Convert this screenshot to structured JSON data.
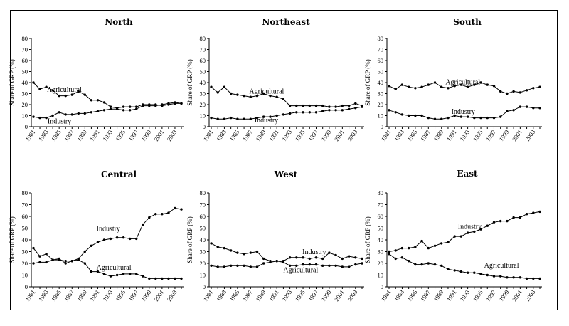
{
  "chart_data": [
    {
      "type": "line",
      "title": "North",
      "ylabel": "Share of GRP (%)",
      "xlabel": "",
      "ylim": [
        0,
        80
      ],
      "yticks": [
        0,
        10,
        20,
        30,
        40,
        50,
        60,
        70,
        80
      ],
      "x": [
        1981,
        1982,
        1983,
        1984,
        1985,
        1986,
        1987,
        1988,
        1989,
        1990,
        1991,
        1992,
        1993,
        1994,
        1995,
        1996,
        1997,
        1998,
        1999,
        2000,
        2001,
        2002,
        2003,
        2004
      ],
      "xtick_labels": [
        "1981",
        "1983",
        "1985",
        "1987",
        "1989",
        "1991",
        "1993",
        "1995",
        "1997",
        "1999",
        "2001",
        "2003"
      ],
      "series": [
        {
          "name": "Agricultural",
          "label": "Agricultural",
          "values": [
            40,
            34,
            36,
            33,
            28,
            28,
            29,
            32,
            29,
            24,
            24,
            22,
            18,
            17,
            18,
            18,
            18,
            20,
            20,
            20,
            19,
            20,
            21,
            21
          ]
        },
        {
          "name": "Industry",
          "label": "Industry",
          "values": [
            9,
            8,
            8,
            10,
            13,
            11,
            11,
            12,
            12,
            13,
            14,
            15,
            16,
            16,
            15,
            15,
            16,
            19,
            19,
            19,
            20,
            21,
            22,
            21
          ]
        }
      ]
    },
    {
      "type": "line",
      "title": "Northeast",
      "ylabel": "Share of GRP (%)",
      "xlabel": "",
      "ylim": [
        0,
        80
      ],
      "yticks": [
        0,
        10,
        20,
        30,
        40,
        50,
        60,
        70,
        80
      ],
      "x": [
        1981,
        1982,
        1983,
        1984,
        1985,
        1986,
        1987,
        1988,
        1989,
        1990,
        1991,
        1992,
        1993,
        1994,
        1995,
        1996,
        1997,
        1998,
        1999,
        2000,
        2001,
        2002,
        2003,
        2004
      ],
      "xtick_labels": [
        "1981",
        "1983",
        "1985",
        "1987",
        "1989",
        "1991",
        "1993",
        "1995",
        "1997",
        "1999",
        "2001",
        "2003"
      ],
      "series": [
        {
          "name": "Agricultural",
          "label": "Agricultural",
          "values": [
            36,
            31,
            36,
            30,
            29,
            28,
            27,
            28,
            30,
            28,
            27,
            25,
            19,
            19,
            19,
            19,
            19,
            19,
            18,
            18,
            19,
            19,
            21,
            19
          ]
        },
        {
          "name": "Industry",
          "label": "Industry",
          "values": [
            8,
            7,
            7,
            8,
            7,
            7,
            7,
            8,
            9,
            9,
            10,
            11,
            12,
            13,
            13,
            13,
            13,
            14,
            15,
            15,
            15,
            16,
            17,
            18
          ]
        }
      ]
    },
    {
      "type": "line",
      "title": "South",
      "ylabel": "Share of GRP (%)",
      "xlabel": "",
      "ylim": [
        0,
        80
      ],
      "yticks": [
        0,
        10,
        20,
        30,
        40,
        50,
        60,
        70,
        80
      ],
      "x": [
        1981,
        1982,
        1983,
        1984,
        1985,
        1986,
        1987,
        1988,
        1989,
        1990,
        1991,
        1992,
        1993,
        1994,
        1995,
        1996,
        1997,
        1998,
        1999,
        2000,
        2001,
        2002,
        2003,
        2004
      ],
      "xtick_labels": [
        "1981",
        "1983",
        "1985",
        "1987",
        "1989",
        "1991",
        "1993",
        "1995",
        "1997",
        "1999",
        "2001",
        "2003"
      ],
      "series": [
        {
          "name": "Agricultural",
          "label": "Agricultural",
          "values": [
            37,
            34,
            38,
            36,
            35,
            36,
            38,
            40,
            36,
            35,
            37,
            38,
            36,
            38,
            40,
            38,
            37,
            32,
            30,
            32,
            31,
            33,
            35,
            36
          ]
        },
        {
          "name": "Industry",
          "label": "Industry",
          "values": [
            15,
            13,
            11,
            10,
            10,
            10,
            8,
            7,
            7,
            8,
            10,
            9,
            9,
            8,
            8,
            8,
            8,
            9,
            14,
            15,
            18,
            18,
            17,
            17
          ]
        }
      ]
    },
    {
      "type": "line",
      "title": "Central",
      "ylabel": "Share of GRP (%)",
      "xlabel": "",
      "ylim": [
        0,
        80
      ],
      "yticks": [
        0,
        10,
        20,
        30,
        40,
        50,
        60,
        70,
        80
      ],
      "x": [
        1981,
        1982,
        1983,
        1984,
        1985,
        1986,
        1987,
        1988,
        1989,
        1990,
        1991,
        1992,
        1993,
        1994,
        1995,
        1996,
        1997,
        1998,
        1999,
        2000,
        2001,
        2002,
        2003,
        2004
      ],
      "xtick_labels": [
        "1981",
        "1983",
        "1985",
        "1987",
        "1989",
        "1991",
        "1993",
        "1995",
        "1997",
        "1999",
        "2001",
        "2003"
      ],
      "series": [
        {
          "name": "Agricultural",
          "label": "Agricultural",
          "values": [
            33,
            26,
            28,
            23,
            23,
            22,
            22,
            23,
            20,
            13,
            13,
            11,
            9,
            10,
            11,
            11,
            11,
            9,
            7,
            7,
            7,
            7,
            7,
            7
          ]
        },
        {
          "name": "Industry",
          "label": "Industry",
          "values": [
            20,
            21,
            21,
            23,
            24,
            20,
            22,
            24,
            30,
            35,
            38,
            40,
            41,
            42,
            42,
            41,
            41,
            53,
            59,
            62,
            62,
            63,
            67,
            66
          ]
        }
      ]
    },
    {
      "type": "line",
      "title": "West",
      "ylabel": "Share of GRP (%)",
      "xlabel": "",
      "ylim": [
        0,
        80
      ],
      "yticks": [
        0,
        10,
        20,
        30,
        40,
        50,
        60,
        70,
        80
      ],
      "x": [
        1981,
        1982,
        1983,
        1984,
        1985,
        1986,
        1987,
        1988,
        1989,
        1990,
        1991,
        1992,
        1993,
        1994,
        1995,
        1996,
        1997,
        1998,
        1999,
        2000,
        2001,
        2002,
        2003,
        2004
      ],
      "xtick_labels": [
        "1981",
        "1983",
        "1985",
        "1987",
        "1989",
        "1991",
        "1993",
        "1995",
        "1997",
        "1999",
        "2001",
        "2003"
      ],
      "series": [
        {
          "name": "Agricultural",
          "label": "Agricultural",
          "values": [
            37,
            34,
            33,
            31,
            29,
            28,
            29,
            30,
            24,
            22,
            22,
            22,
            25,
            25,
            25,
            24,
            25,
            24,
            29,
            27,
            24,
            26,
            25,
            24
          ]
        },
        {
          "name": "Industry",
          "label": "Industry",
          "values": [
            18,
            17,
            17,
            18,
            18,
            18,
            17,
            17,
            20,
            21,
            22,
            21,
            18,
            18,
            19,
            19,
            19,
            18,
            18,
            18,
            17,
            17,
            19,
            20
          ]
        }
      ]
    },
    {
      "type": "line",
      "title": "East",
      "ylabel": "Share of GRP (%)",
      "xlabel": "",
      "ylim": [
        0,
        80
      ],
      "yticks": [
        0,
        10,
        20,
        30,
        40,
        50,
        60,
        70,
        80
      ],
      "x": [
        1981,
        1982,
        1983,
        1984,
        1985,
        1986,
        1987,
        1988,
        1989,
        1990,
        1991,
        1992,
        1993,
        1994,
        1995,
        1996,
        1997,
        1998,
        1999,
        2000,
        2001,
        2002,
        2003,
        2004
      ],
      "xtick_labels": [
        "1981",
        "1983",
        "1985",
        "1987",
        "1989",
        "1991",
        "1993",
        "1995",
        "1997",
        "1999",
        "2001",
        "2003"
      ],
      "series": [
        {
          "name": "Agricultural",
          "label": "Agricultural",
          "values": [
            28,
            24,
            25,
            22,
            19,
            19,
            20,
            19,
            18,
            15,
            14,
            13,
            12,
            12,
            11,
            10,
            9,
            9,
            8,
            8,
            8,
            7,
            7,
            7
          ]
        },
        {
          "name": "Industry",
          "label": "Industry",
          "values": [
            30,
            31,
            33,
            33,
            34,
            39,
            33,
            35,
            37,
            38,
            43,
            43,
            46,
            47,
            49,
            52,
            55,
            56,
            56,
            59,
            59,
            62,
            63,
            64
          ]
        }
      ]
    }
  ]
}
